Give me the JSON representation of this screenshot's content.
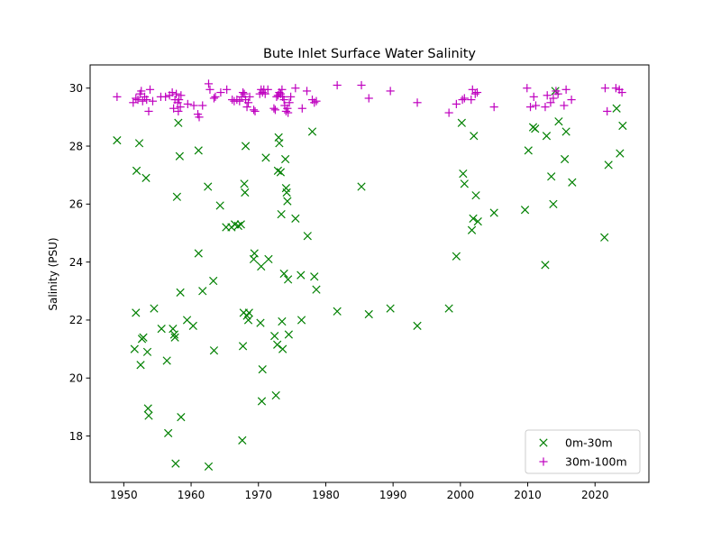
{
  "chart_data": {
    "type": "scatter",
    "title": "Bute Inlet Surface Water Salinity",
    "xlabel": "",
    "ylabel": "Salinity (PSU)",
    "xlim": [
      1945,
      2028
    ],
    "ylim": [
      16.4,
      30.8
    ],
    "xticks": [
      1950,
      1960,
      1970,
      1980,
      1990,
      2000,
      2010,
      2020
    ],
    "yticks": [
      18,
      20,
      22,
      24,
      26,
      28,
      30
    ],
    "grid": false,
    "legend_position": "lower-right",
    "series": [
      {
        "name": "0m-30m",
        "marker": "x",
        "color": "#008000",
        "points": [
          [
            1949.0,
            28.2
          ],
          [
            1951.6,
            21.0
          ],
          [
            1951.8,
            22.25
          ],
          [
            1951.9,
            27.15
          ],
          [
            1952.3,
            28.1
          ],
          [
            1952.5,
            20.45
          ],
          [
            1952.7,
            21.35
          ],
          [
            1952.9,
            21.4
          ],
          [
            1953.3,
            26.9
          ],
          [
            1953.5,
            20.9
          ],
          [
            1953.6,
            18.95
          ],
          [
            1953.7,
            18.7
          ],
          [
            1954.5,
            22.4
          ],
          [
            1955.6,
            21.7
          ],
          [
            1956.4,
            20.6
          ],
          [
            1956.6,
            18.1
          ],
          [
            1957.3,
            21.7
          ],
          [
            1957.5,
            21.5
          ],
          [
            1957.6,
            21.4
          ],
          [
            1957.7,
            17.05
          ],
          [
            1957.9,
            26.25
          ],
          [
            1958.1,
            28.8
          ],
          [
            1958.3,
            27.65
          ],
          [
            1958.4,
            22.95
          ],
          [
            1958.5,
            18.65
          ],
          [
            1959.4,
            22.0
          ],
          [
            1960.3,
            21.8
          ],
          [
            1961.1,
            27.85
          ],
          [
            1961.1,
            24.3
          ],
          [
            1961.7,
            23.0
          ],
          [
            1962.5,
            26.6
          ],
          [
            1962.6,
            16.95
          ],
          [
            1963.3,
            23.35
          ],
          [
            1963.4,
            20.95
          ],
          [
            1964.3,
            25.95
          ],
          [
            1965.2,
            25.2
          ],
          [
            1966.0,
            25.2
          ],
          [
            1966.5,
            25.3
          ],
          [
            1967.0,
            25.25
          ],
          [
            1967.4,
            25.3
          ],
          [
            1967.6,
            17.85
          ],
          [
            1967.7,
            21.1
          ],
          [
            1967.8,
            22.25
          ],
          [
            1967.9,
            26.7
          ],
          [
            1968.0,
            26.4
          ],
          [
            1968.1,
            28.0
          ],
          [
            1968.3,
            22.15
          ],
          [
            1968.5,
            22.0
          ],
          [
            1968.6,
            22.25
          ],
          [
            1969.3,
            24.1
          ],
          [
            1969.4,
            24.3
          ],
          [
            1970.3,
            21.9
          ],
          [
            1970.4,
            23.85
          ],
          [
            1970.5,
            19.2
          ],
          [
            1970.6,
            20.3
          ],
          [
            1971.1,
            27.6
          ],
          [
            1971.5,
            24.1
          ],
          [
            1972.4,
            21.45
          ],
          [
            1972.6,
            19.4
          ],
          [
            1972.8,
            21.15
          ],
          [
            1972.9,
            27.15
          ],
          [
            1973.0,
            28.3
          ],
          [
            1973.1,
            28.1
          ],
          [
            1973.3,
            27.1
          ],
          [
            1973.4,
            25.65
          ],
          [
            1973.5,
            21.95
          ],
          [
            1973.6,
            21.0
          ],
          [
            1973.8,
            23.6
          ],
          [
            1974.0,
            27.55
          ],
          [
            1974.1,
            26.55
          ],
          [
            1974.2,
            26.4
          ],
          [
            1974.3,
            26.1
          ],
          [
            1974.4,
            23.4
          ],
          [
            1974.5,
            21.5
          ],
          [
            1975.5,
            25.5
          ],
          [
            1976.3,
            23.55
          ],
          [
            1976.4,
            22.0
          ],
          [
            1977.3,
            24.9
          ],
          [
            1978.0,
            28.5
          ],
          [
            1978.3,
            23.5
          ],
          [
            1978.6,
            23.05
          ],
          [
            1981.7,
            22.3
          ],
          [
            1985.3,
            26.6
          ],
          [
            1986.4,
            22.2
          ],
          [
            1989.6,
            22.4
          ],
          [
            1993.6,
            21.8
          ],
          [
            1998.3,
            22.4
          ],
          [
            1999.4,
            24.2
          ],
          [
            2000.2,
            28.8
          ],
          [
            2000.4,
            27.05
          ],
          [
            2000.6,
            26.7
          ],
          [
            2001.7,
            25.1
          ],
          [
            2001.9,
            25.5
          ],
          [
            2002.0,
            28.35
          ],
          [
            2002.3,
            26.3
          ],
          [
            2002.6,
            25.4
          ],
          [
            2005.0,
            25.7
          ],
          [
            2009.6,
            25.8
          ],
          [
            2010.1,
            27.85
          ],
          [
            2010.8,
            28.65
          ],
          [
            2011.1,
            28.6
          ],
          [
            2012.6,
            23.9
          ],
          [
            2012.8,
            28.35
          ],
          [
            2013.5,
            26.95
          ],
          [
            2013.8,
            26.0
          ],
          [
            2014.1,
            29.9
          ],
          [
            2014.6,
            28.85
          ],
          [
            2015.5,
            27.55
          ],
          [
            2015.7,
            28.5
          ],
          [
            2016.6,
            26.75
          ],
          [
            2021.4,
            24.85
          ],
          [
            2022.0,
            27.35
          ],
          [
            2023.2,
            29.3
          ],
          [
            2023.7,
            27.75
          ],
          [
            2024.1,
            28.7
          ]
        ]
      },
      {
        "name": "30m-100m",
        "marker": "+",
        "color": "#bf00bf",
        "points": [
          [
            1949.0,
            29.7
          ],
          [
            1951.4,
            29.5
          ],
          [
            1951.8,
            29.65
          ],
          [
            1952.1,
            29.6
          ],
          [
            1952.4,
            29.8
          ],
          [
            1952.6,
            29.9
          ],
          [
            1952.8,
            29.55
          ],
          [
            1953.1,
            29.7
          ],
          [
            1953.4,
            29.6
          ],
          [
            1953.7,
            29.2
          ],
          [
            1953.9,
            29.95
          ],
          [
            1954.3,
            29.55
          ],
          [
            1955.5,
            29.7
          ],
          [
            1956.2,
            29.7
          ],
          [
            1956.8,
            29.75
          ],
          [
            1957.2,
            29.85
          ],
          [
            1957.4,
            29.3
          ],
          [
            1957.6,
            29.6
          ],
          [
            1957.8,
            29.8
          ],
          [
            1958.0,
            29.5
          ],
          [
            1958.1,
            29.2
          ],
          [
            1958.2,
            29.6
          ],
          [
            1958.4,
            29.35
          ],
          [
            1958.5,
            29.75
          ],
          [
            1959.5,
            29.45
          ],
          [
            1960.4,
            29.4
          ],
          [
            1961.0,
            29.1
          ],
          [
            1961.2,
            29.0
          ],
          [
            1961.7,
            29.4
          ],
          [
            1962.6,
            30.15
          ],
          [
            1962.8,
            29.95
          ],
          [
            1963.4,
            29.65
          ],
          [
            1963.6,
            29.7
          ],
          [
            1964.4,
            29.85
          ],
          [
            1965.3,
            29.95
          ],
          [
            1966.1,
            29.6
          ],
          [
            1966.4,
            29.55
          ],
          [
            1966.8,
            29.6
          ],
          [
            1967.2,
            29.55
          ],
          [
            1967.5,
            29.7
          ],
          [
            1967.7,
            29.85
          ],
          [
            1967.9,
            29.8
          ],
          [
            1968.1,
            29.6
          ],
          [
            1968.3,
            29.35
          ],
          [
            1968.5,
            29.5
          ],
          [
            1968.7,
            29.7
          ],
          [
            1969.3,
            29.25
          ],
          [
            1969.5,
            29.2
          ],
          [
            1970.2,
            29.8
          ],
          [
            1970.4,
            29.95
          ],
          [
            1970.6,
            29.85
          ],
          [
            1970.8,
            29.95
          ],
          [
            1971.0,
            29.8
          ],
          [
            1971.4,
            29.95
          ],
          [
            1972.3,
            29.3
          ],
          [
            1972.5,
            29.25
          ],
          [
            1972.7,
            29.7
          ],
          [
            1972.9,
            29.75
          ],
          [
            1973.1,
            29.85
          ],
          [
            1973.3,
            29.8
          ],
          [
            1973.5,
            29.95
          ],
          [
            1973.6,
            29.7
          ],
          [
            1973.8,
            29.6
          ],
          [
            1973.9,
            29.4
          ],
          [
            1974.1,
            29.2
          ],
          [
            1974.3,
            29.3
          ],
          [
            1974.4,
            29.15
          ],
          [
            1974.6,
            29.5
          ],
          [
            1974.8,
            29.7
          ],
          [
            1975.5,
            30.0
          ],
          [
            1976.5,
            29.3
          ],
          [
            1977.2,
            29.9
          ],
          [
            1978.0,
            29.6
          ],
          [
            1978.3,
            29.5
          ],
          [
            1978.6,
            29.55
          ],
          [
            1981.7,
            30.1
          ],
          [
            1985.3,
            30.1
          ],
          [
            1986.4,
            29.65
          ],
          [
            1989.6,
            29.9
          ],
          [
            1993.6,
            29.5
          ],
          [
            1998.3,
            29.15
          ],
          [
            1999.4,
            29.45
          ],
          [
            2000.3,
            29.6
          ],
          [
            2000.6,
            29.65
          ],
          [
            2001.6,
            29.6
          ],
          [
            2001.8,
            29.95
          ],
          [
            2002.2,
            29.8
          ],
          [
            2002.5,
            29.85
          ],
          [
            2005.0,
            29.35
          ],
          [
            2009.9,
            30.0
          ],
          [
            2010.4,
            29.35
          ],
          [
            2010.9,
            29.7
          ],
          [
            2011.2,
            29.4
          ],
          [
            2012.6,
            29.35
          ],
          [
            2012.9,
            29.75
          ],
          [
            2013.4,
            29.5
          ],
          [
            2013.8,
            29.65
          ],
          [
            2014.2,
            29.9
          ],
          [
            2014.5,
            29.8
          ],
          [
            2015.4,
            29.4
          ],
          [
            2015.7,
            29.95
          ],
          [
            2016.5,
            29.6
          ],
          [
            2021.5,
            30.0
          ],
          [
            2021.8,
            29.2
          ],
          [
            2023.1,
            30.0
          ],
          [
            2023.6,
            29.95
          ],
          [
            2024.0,
            29.85
          ]
        ]
      }
    ]
  }
}
